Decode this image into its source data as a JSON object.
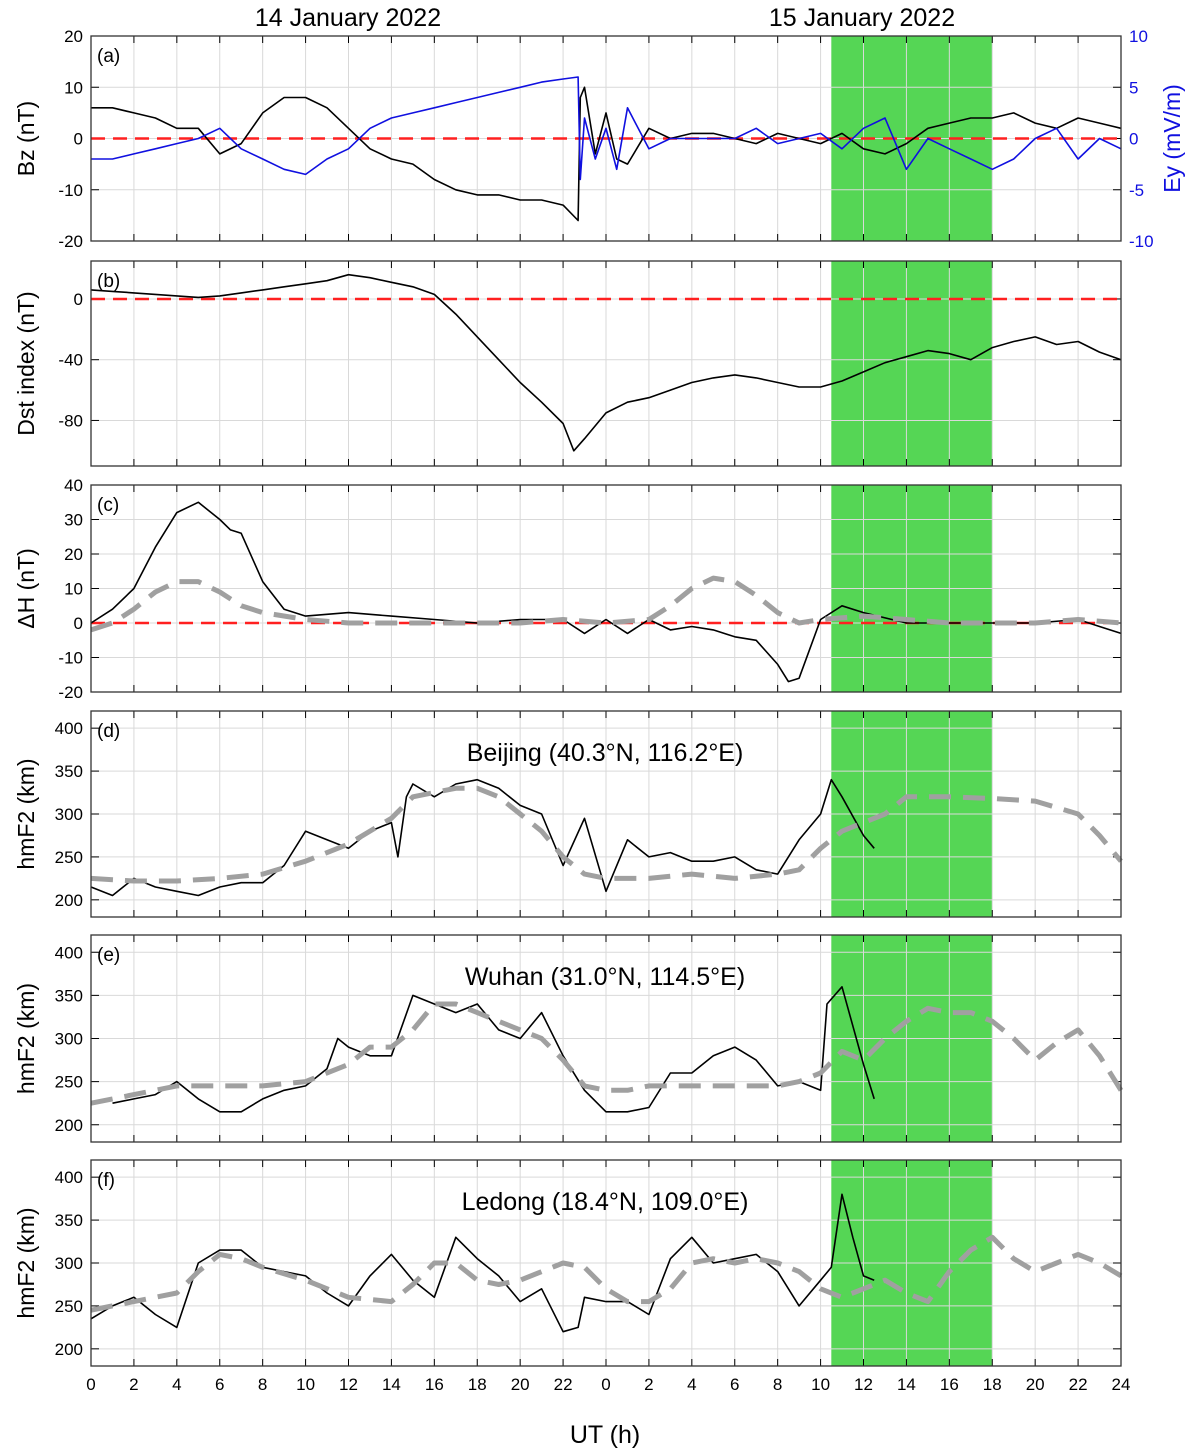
{
  "dates": {
    "day1": "14 January 2022",
    "day2": "15 January 2022"
  },
  "xaxis": {
    "label": "UT (h)",
    "ticks": [
      "0",
      "2",
      "4",
      "6",
      "8",
      "10",
      "12",
      "14",
      "16",
      "18",
      "20",
      "22",
      "0",
      "2",
      "4",
      "6",
      "8",
      "10",
      "12",
      "14",
      "16",
      "18",
      "20",
      "22",
      "24"
    ]
  },
  "colors": {
    "shade": "#55d655",
    "ey": "#1010e0",
    "zero": "#ff2020",
    "model": "#a0a0a0",
    "obs": "#000000"
  },
  "chart_data": [
    {
      "type": "line",
      "panel": "(a)",
      "ylabel": "Bz (nT)",
      "ylim": [
        -20,
        20
      ],
      "yticks": [
        "20",
        "10",
        "0",
        "-10",
        "-20"
      ],
      "y2label": "Ey (mV/m)",
      "y2lim": [
        -10,
        10
      ],
      "y2ticks": [
        "10",
        "5",
        "0",
        "-5",
        "-10"
      ],
      "shaded_ut_hours": [
        34.5,
        42
      ],
      "series": [
        {
          "axis": "left",
          "color": "black",
          "x": [
            0,
            1,
            2,
            3,
            4,
            5,
            6,
            7,
            8,
            9,
            10,
            11,
            12,
            13,
            14,
            15,
            16,
            17,
            18,
            19,
            20,
            21,
            22,
            22.7,
            22.8,
            23,
            23.5,
            24,
            24.5,
            25,
            26,
            27,
            28,
            29,
            30,
            31,
            32,
            33,
            34,
            35,
            36,
            37,
            38,
            39,
            40,
            41,
            42,
            43,
            44,
            45,
            46,
            47,
            48
          ],
          "y": [
            6,
            6,
            5,
            4,
            2,
            2,
            -3,
            -1,
            5,
            8,
            8,
            6,
            2,
            -2,
            -4,
            -5,
            -8,
            -10,
            -11,
            -11,
            -12,
            -12,
            -13,
            -16,
            8,
            10,
            -3,
            5,
            -4,
            -5,
            2,
            0,
            1,
            1,
            0,
            -1,
            1,
            0,
            -1,
            1,
            -2,
            -3,
            -1,
            2,
            3,
            4,
            4,
            5,
            3,
            2,
            4,
            3,
            2
          ]
        },
        {
          "axis": "right",
          "color": "blue",
          "x": [
            0,
            1,
            2,
            3,
            4,
            5,
            6,
            7,
            8,
            9,
            10,
            11,
            12,
            13,
            14,
            15,
            16,
            17,
            18,
            19,
            20,
            21,
            22,
            22.7,
            22.8,
            23,
            23.5,
            24,
            24.5,
            25,
            26,
            27,
            28,
            29,
            30,
            31,
            32,
            33,
            34,
            35,
            36,
            37,
            38,
            39,
            40,
            41,
            42,
            43,
            44,
            45,
            46,
            47,
            48
          ],
          "y": [
            -2,
            -2,
            -1.5,
            -1,
            -0.5,
            0,
            1,
            -1,
            -2,
            -3,
            -3.5,
            -2,
            -1,
            1,
            2,
            2.5,
            3,
            3.5,
            4,
            4.5,
            5,
            5.5,
            5.8,
            6,
            -4,
            2,
            -2,
            1,
            -3,
            3,
            -1,
            0,
            0,
            0,
            0,
            1,
            -0.5,
            0,
            0.5,
            -1,
            1,
            2,
            -3,
            0,
            -1,
            -2,
            -3,
            -2,
            0,
            1,
            -2,
            0,
            -1
          ]
        }
      ]
    },
    {
      "type": "line",
      "panel": "(b)",
      "ylabel": "Dst index (nT)",
      "ylim": [
        -110,
        25
      ],
      "yticks": [
        "0",
        "-40",
        "-80"
      ],
      "series": [
        {
          "color": "black",
          "x": [
            0,
            1,
            2,
            3,
            4,
            5,
            6,
            7,
            8,
            9,
            10,
            11,
            12,
            13,
            14,
            15,
            16,
            17,
            18,
            19,
            20,
            21,
            22,
            22.5,
            23,
            24,
            25,
            26,
            27,
            28,
            29,
            30,
            31,
            32,
            33,
            34,
            35,
            36,
            37,
            38,
            39,
            40,
            41,
            42,
            43,
            44,
            45,
            46,
            47,
            48
          ],
          "y": [
            6,
            5,
            4,
            3,
            2,
            1,
            2,
            4,
            6,
            8,
            10,
            12,
            16,
            14,
            11,
            8,
            3,
            -10,
            -25,
            -40,
            -55,
            -68,
            -82,
            -100,
            -92,
            -75,
            -68,
            -65,
            -60,
            -55,
            -52,
            -50,
            -52,
            -55,
            -58,
            -58,
            -54,
            -48,
            -42,
            -38,
            -34,
            -36,
            -40,
            -32,
            -28,
            -25,
            -30,
            -28,
            -35,
            -40
          ]
        }
      ]
    },
    {
      "type": "line",
      "panel": "(c)",
      "ylabel": "ΔH (nT)",
      "ylim": [
        -20,
        40
      ],
      "yticks": [
        "40",
        "30",
        "20",
        "10",
        "0",
        "-10",
        "-20"
      ],
      "series": [
        {
          "color": "black",
          "x": [
            0,
            1,
            2,
            3,
            4,
            5,
            6,
            6.5,
            7,
            8,
            9,
            10,
            12,
            14,
            16,
            18,
            20,
            22,
            23,
            24,
            25,
            26,
            27,
            28,
            29,
            30,
            31,
            32,
            32.5,
            33,
            34,
            35,
            36,
            38,
            40,
            42,
            44,
            46,
            47,
            48
          ],
          "y": [
            0,
            4,
            10,
            22,
            32,
            35,
            30,
            27,
            26,
            12,
            4,
            2,
            3,
            2,
            1,
            0,
            1,
            1,
            -3,
            1,
            -3,
            1,
            -2,
            -1,
            -2,
            -4,
            -5,
            -12,
            -17,
            -16,
            1,
            5,
            3,
            0,
            0,
            0,
            0,
            1,
            -1,
            -3
          ]
        },
        {
          "color": "gray",
          "style": "dashed",
          "x": [
            0,
            1,
            2,
            3,
            4,
            5,
            6,
            7,
            8,
            10,
            12,
            14,
            16,
            18,
            20,
            22,
            24,
            26,
            27,
            28,
            29,
            30,
            31,
            32,
            33,
            34,
            36,
            38,
            40,
            42,
            44,
            46,
            48
          ],
          "y": [
            -2,
            0,
            4,
            9,
            12,
            12,
            9,
            5,
            3,
            1,
            0,
            0,
            0,
            0,
            0,
            1,
            0,
            1,
            5,
            10,
            13,
            12,
            8,
            3,
            0,
            1,
            2,
            1,
            0,
            0,
            0,
            1,
            0
          ]
        }
      ]
    },
    {
      "type": "line",
      "panel": "(d)",
      "ylabel": "hmF2 (km)",
      "ylim": [
        180,
        420
      ],
      "yticks": [
        "400",
        "350",
        "300",
        "250",
        "200"
      ],
      "annotation": "Beijing (40.3°N, 116.2°E)",
      "series": [
        {
          "color": "black",
          "x": [
            0,
            1,
            2,
            3,
            4,
            5,
            6,
            7,
            8,
            9,
            10,
            11,
            12,
            13,
            14,
            14.3,
            14.7,
            15,
            16,
            17,
            18,
            19,
            20,
            21,
            22,
            23,
            24,
            25,
            26,
            27,
            28,
            29,
            30,
            31,
            32,
            33,
            34,
            34.5,
            35,
            36,
            36.5
          ],
          "y": [
            215,
            205,
            225,
            215,
            210,
            205,
            215,
            220,
            220,
            240,
            280,
            270,
            260,
            280,
            290,
            250,
            320,
            335,
            320,
            335,
            340,
            330,
            310,
            300,
            240,
            295,
            210,
            270,
            250,
            255,
            245,
            245,
            250,
            235,
            230,
            270,
            300,
            340,
            320,
            275,
            260
          ]
        },
        {
          "color": "gray",
          "style": "dashed",
          "x": [
            0,
            2,
            4,
            6,
            8,
            10,
            12,
            14,
            15,
            16,
            17,
            18,
            19,
            20,
            21,
            22,
            23,
            24,
            26,
            28,
            30,
            32,
            33,
            34,
            35,
            36,
            37,
            38,
            40,
            42,
            44,
            46,
            47,
            48
          ],
          "y": [
            225,
            222,
            222,
            225,
            230,
            245,
            265,
            295,
            320,
            325,
            330,
            330,
            320,
            300,
            280,
            250,
            230,
            225,
            225,
            230,
            225,
            230,
            235,
            260,
            280,
            290,
            300,
            320,
            320,
            318,
            315,
            300,
            275,
            245
          ]
        }
      ]
    },
    {
      "type": "line",
      "panel": "(e)",
      "ylabel": "hmF2 (km)",
      "ylim": [
        180,
        420
      ],
      "yticks": [
        "400",
        "350",
        "300",
        "250",
        "200"
      ],
      "annotation": "Wuhan (31.0°N, 114.5°E)",
      "series": [
        {
          "color": "black",
          "x": [
            1,
            2,
            3,
            4,
            5,
            6,
            7,
            8,
            9,
            10,
            11,
            11.5,
            12,
            13,
            14,
            15,
            16,
            17,
            18,
            19,
            20,
            21,
            22,
            23,
            24,
            25,
            26,
            27,
            28,
            29,
            30,
            31,
            32,
            33,
            34,
            34.3,
            35,
            36,
            36.5
          ],
          "y": [
            225,
            230,
            235,
            250,
            230,
            215,
            215,
            230,
            240,
            245,
            265,
            300,
            290,
            280,
            280,
            350,
            340,
            330,
            340,
            310,
            300,
            330,
            280,
            240,
            215,
            215,
            220,
            260,
            260,
            280,
            290,
            275,
            245,
            250,
            240,
            340,
            360,
            270,
            230
          ]
        },
        {
          "color": "gray",
          "style": "dashed",
          "x": [
            0,
            1,
            2,
            4,
            6,
            8,
            10,
            12,
            13,
            14,
            15,
            16,
            17,
            18,
            19,
            20,
            21,
            22,
            23,
            24,
            25,
            26,
            28,
            30,
            32,
            33,
            34,
            35,
            36,
            37,
            38,
            39,
            40,
            41,
            42,
            43,
            44,
            45,
            46,
            47,
            48
          ],
          "y": [
            225,
            230,
            235,
            245,
            245,
            245,
            250,
            270,
            290,
            290,
            310,
            340,
            340,
            330,
            320,
            310,
            300,
            275,
            245,
            240,
            240,
            245,
            245,
            245,
            245,
            250,
            260,
            285,
            275,
            300,
            320,
            335,
            330,
            330,
            320,
            300,
            275,
            295,
            310,
            280,
            240
          ]
        }
      ]
    },
    {
      "type": "line",
      "panel": "(f)",
      "ylabel": "hmF2 (km)",
      "ylim": [
        180,
        420
      ],
      "yticks": [
        "400",
        "350",
        "300",
        "250",
        "200"
      ],
      "annotation": "Ledong (18.4°N, 109.0°E)",
      "series": [
        {
          "color": "black",
          "x": [
            0,
            1,
            2,
            3,
            4,
            5,
            6,
            7,
            8,
            9,
            10,
            11,
            12,
            13,
            14,
            15,
            16,
            17,
            18,
            19,
            20,
            21,
            22,
            22.7,
            23,
            24,
            25,
            26,
            27,
            28,
            29,
            30,
            31,
            32,
            33,
            34,
            34.5,
            35,
            35.5,
            36,
            36.5
          ],
          "y": [
            235,
            250,
            260,
            240,
            225,
            300,
            315,
            315,
            295,
            290,
            285,
            265,
            250,
            285,
            310,
            280,
            260,
            330,
            305,
            285,
            255,
            270,
            220,
            225,
            260,
            255,
            255,
            240,
            305,
            330,
            300,
            305,
            310,
            290,
            250,
            280,
            295,
            380,
            330,
            285,
            280
          ]
        },
        {
          "color": "gray",
          "style": "dashed",
          "x": [
            0,
            2,
            4,
            5,
            6,
            7,
            8,
            10,
            12,
            14,
            15,
            16,
            17,
            18,
            19,
            20,
            21,
            22,
            23,
            24,
            25,
            26,
            27,
            28,
            29,
            30,
            31,
            32,
            33,
            34,
            35,
            36,
            37,
            38,
            39,
            40,
            41,
            42,
            43,
            44,
            45,
            46,
            47,
            48
          ],
          "y": [
            245,
            255,
            265,
            290,
            310,
            305,
            295,
            280,
            260,
            255,
            275,
            300,
            300,
            280,
            275,
            280,
            290,
            300,
            295,
            270,
            255,
            255,
            270,
            300,
            305,
            300,
            305,
            300,
            290,
            270,
            260,
            270,
            280,
            265,
            255,
            290,
            315,
            330,
            305,
            290,
            300,
            310,
            300,
            285
          ]
        }
      ]
    }
  ]
}
